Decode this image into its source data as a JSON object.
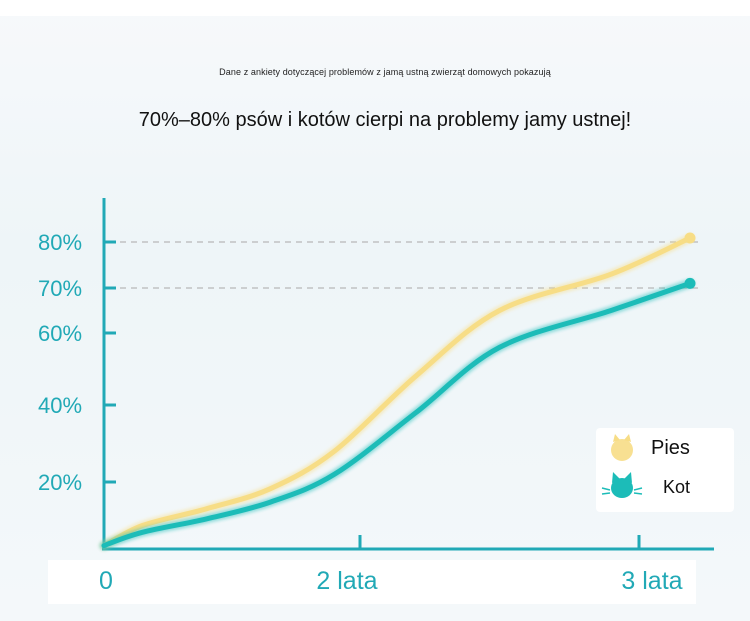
{
  "subtitle": "Dane z ankiety dotyczącej problemów z jamą ustną zwierząt domowych pokazują",
  "title": "70%–80% psów i kotów cierpi na problemy jamy ustnej!",
  "colors": {
    "axis": "#21a9b6",
    "pies": "#f7dd86",
    "kot": "#1cbcb8",
    "guide": "#b8b8b8"
  },
  "chart_data": {
    "type": "line",
    "x_ticks": [
      {
        "value": 0,
        "label": "0"
      },
      {
        "value": 2,
        "label": "2 lata"
      },
      {
        "value": 3,
        "label": "3 lata"
      }
    ],
    "y_ticks": [
      {
        "value": 20,
        "label": "20%"
      },
      {
        "value": 40,
        "label": "40%"
      },
      {
        "value": 60,
        "label": "60%"
      },
      {
        "value": 70,
        "label": "70%"
      },
      {
        "value": 80,
        "label": "80%"
      }
    ],
    "reference_lines": [
      70,
      80
    ],
    "series": [
      {
        "name": "Pies",
        "icon": "dog-icon",
        "x": [
          0,
          0.3,
          0.8,
          1.3,
          1.8,
          2.2,
          2.5,
          2.9,
          3.2
        ],
        "y": [
          1,
          7,
          12,
          18,
          28,
          48,
          65,
          73,
          81
        ]
      },
      {
        "name": "Kot",
        "icon": "cat-icon",
        "x": [
          0,
          0.3,
          0.8,
          1.3,
          1.8,
          2.2,
          2.5,
          2.9,
          3.2
        ],
        "y": [
          1,
          5,
          9,
          14,
          22,
          38,
          56,
          65,
          71
        ]
      }
    ],
    "legend": {
      "position": "right",
      "items": [
        "Pies",
        "Kot"
      ]
    }
  }
}
